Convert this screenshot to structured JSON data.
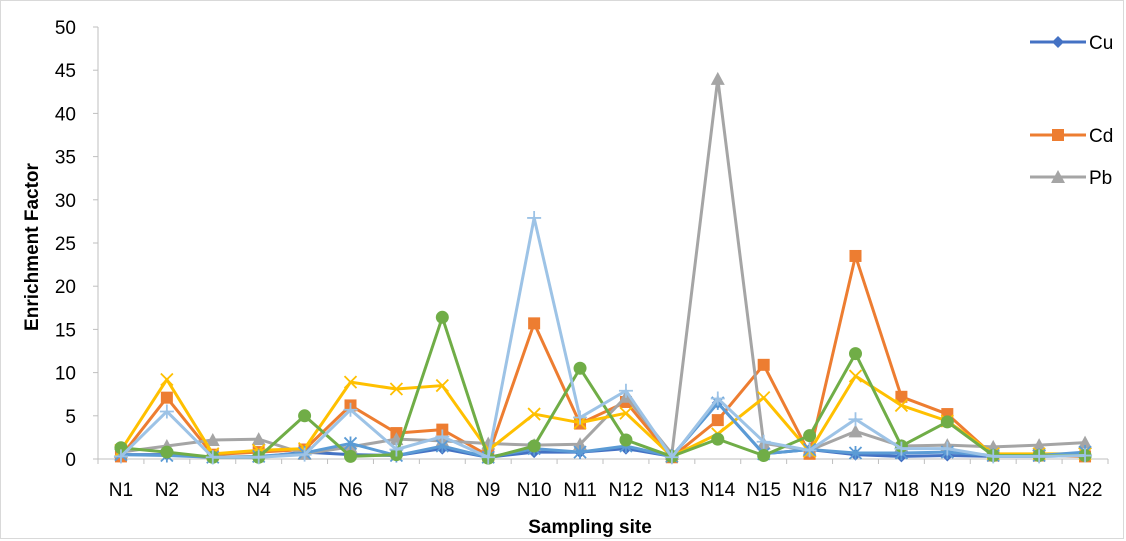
{
  "chart_data": {
    "type": "line",
    "title": "",
    "xlabel": "Sampling site",
    "ylabel": "Enrichment Factor",
    "ylim": [
      0,
      50
    ],
    "yticks": [
      0,
      5,
      10,
      15,
      20,
      25,
      30,
      35,
      40,
      45,
      50
    ],
    "grid": false,
    "legend_position": "right",
    "categories": [
      "N1",
      "N2",
      "N3",
      "N4",
      "N5",
      "N6",
      "N7",
      "N8",
      "N9",
      "N10",
      "N11",
      "N12",
      "N13",
      "N14",
      "N15",
      "N16",
      "N17",
      "N18",
      "N19",
      "N20",
      "N21",
      "N22"
    ],
    "series": [
      {
        "name": "Cu",
        "color": "#4472C4",
        "marker": "diamond",
        "values": [
          0.5,
          0.5,
          0.2,
          0.2,
          0.8,
          0.5,
          0.4,
          1.2,
          0.2,
          0.8,
          0.8,
          1.2,
          0.3,
          6.5,
          0.6,
          1.1,
          0.5,
          0.3,
          0.4,
          0.3,
          0.3,
          0.4
        ]
      },
      {
        "name": "Cd",
        "color": "#ED7D31",
        "marker": "square",
        "values": [
          0.3,
          7.1,
          0.5,
          0.8,
          1.1,
          6.2,
          3.0,
          3.4,
          0.4,
          15.7,
          4.1,
          6.6,
          0.2,
          4.5,
          10.9,
          0.6,
          23.5,
          7.2,
          5.2,
          0.4,
          0.4,
          0.3
        ]
      },
      {
        "name": "Pb",
        "color": "#A5A5A5",
        "marker": "triangle",
        "values": [
          0.8,
          1.5,
          2.2,
          2.3,
          0.6,
          1.4,
          2.3,
          2.1,
          1.8,
          1.6,
          1.7,
          7.2,
          0.6,
          44.0,
          1.8,
          1.0,
          3.2,
          1.5,
          1.6,
          1.4,
          1.6,
          1.9
        ]
      },
      {
        "name": "",
        "color": "#FFC000",
        "marker": "x",
        "values": [
          1.0,
          9.2,
          0.6,
          1.0,
          1.2,
          8.9,
          8.1,
          8.5,
          1.0,
          5.2,
          4.2,
          5.3,
          0.3,
          2.9,
          7.1,
          0.9,
          9.6,
          6.2,
          4.4,
          0.6,
          0.6,
          0.6
        ]
      },
      {
        "name": "",
        "color": "#5B9BD5",
        "marker": "star",
        "values": [
          0.5,
          0.4,
          0.2,
          0.3,
          0.7,
          1.8,
          0.4,
          1.5,
          0.2,
          1.2,
          0.8,
          1.5,
          0.3,
          6.5,
          0.6,
          1.1,
          0.7,
          0.7,
          0.8,
          0.4,
          0.4,
          0.8
        ]
      },
      {
        "name": "",
        "color": "#70AD47",
        "marker": "circle",
        "values": [
          1.3,
          0.8,
          0.2,
          0.2,
          5.0,
          0.3,
          0.5,
          16.4,
          0.1,
          1.5,
          10.5,
          2.2,
          0.3,
          2.3,
          0.4,
          2.7,
          12.2,
          1.5,
          4.3,
          0.4,
          0.4,
          0.4
        ]
      },
      {
        "name": "",
        "color": "#9DC3E6",
        "marker": "plus",
        "values": [
          0.3,
          5.5,
          0.2,
          0.2,
          0.5,
          5.7,
          1.1,
          2.6,
          0.2,
          27.9,
          4.8,
          7.9,
          0.2,
          7.0,
          2.0,
          1.0,
          4.6,
          1.2,
          1.2,
          0.3,
          0.3,
          0.4
        ]
      }
    ]
  }
}
